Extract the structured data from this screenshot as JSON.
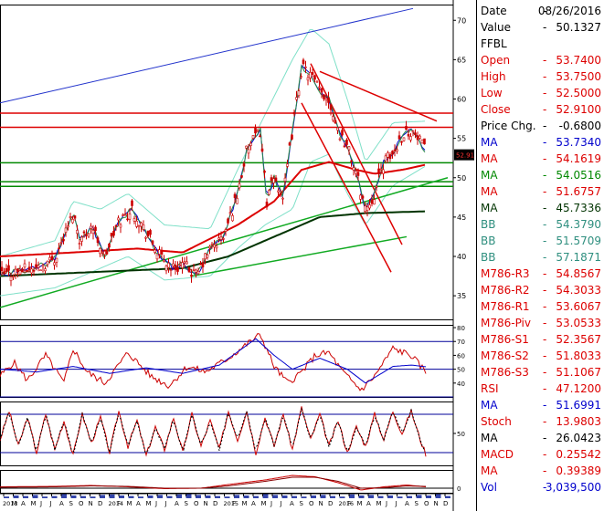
{
  "chart_data": {
    "type": "line",
    "symbol": "FFBL",
    "price_tag": "52.91",
    "x_tick_labels": [
      "2013",
      "M",
      "A",
      "M",
      "J",
      "J",
      "A",
      "S",
      "O",
      "N",
      "D",
      "2014",
      "F",
      "M",
      "A",
      "M",
      "J",
      "J",
      "A",
      "S",
      "O",
      "N",
      "D",
      "2015",
      "F",
      "M",
      "A",
      "M",
      "J",
      "J",
      "A",
      "S",
      "O",
      "N",
      "D",
      "2016",
      "F",
      "M",
      "A",
      "M",
      "J",
      "J",
      "A",
      "S",
      "O",
      "N",
      "D"
    ],
    "price_panel": {
      "ylim": [
        32,
        72
      ],
      "y_ticks": [
        35,
        40,
        45,
        50,
        55,
        60,
        65,
        70
      ],
      "close_knots": [
        [
          0,
          37.5
        ],
        [
          20,
          38.2
        ],
        [
          40,
          38.5
        ],
        [
          60,
          39.8
        ],
        [
          70,
          42.5
        ],
        [
          80,
          45.5
        ],
        [
          88,
          42
        ],
        [
          100,
          44
        ],
        [
          115,
          40
        ],
        [
          130,
          44.5
        ],
        [
          145,
          46
        ],
        [
          160,
          43
        ],
        [
          175,
          40
        ],
        [
          190,
          38.5
        ],
        [
          200,
          39
        ],
        [
          215,
          37.5
        ],
        [
          230,
          41
        ],
        [
          245,
          42.5
        ],
        [
          260,
          48
        ],
        [
          270,
          53.5
        ],
        [
          285,
          56
        ],
        [
          292,
          47
        ],
        [
          300,
          50
        ],
        [
          310,
          47.5
        ],
        [
          320,
          56
        ],
        [
          330,
          64
        ],
        [
          340,
          63
        ],
        [
          350,
          61
        ],
        [
          360,
          60
        ],
        [
          370,
          56
        ],
        [
          380,
          54
        ],
        [
          390,
          50.5
        ],
        [
          400,
          46
        ],
        [
          410,
          48
        ],
        [
          420,
          52
        ],
        [
          430,
          53
        ],
        [
          440,
          55.5
        ],
        [
          450,
          56
        ],
        [
          460,
          54.5
        ],
        [
          467,
          52.91
        ]
      ],
      "ma_slow": [
        [
          0,
          40
        ],
        [
          80,
          40.5
        ],
        [
          150,
          41
        ],
        [
          200,
          40.5
        ],
        [
          260,
          44
        ],
        [
          300,
          47
        ],
        [
          330,
          51
        ],
        [
          360,
          52
        ],
        [
          390,
          51
        ],
        [
          410,
          50.5
        ],
        [
          440,
          51
        ],
        [
          467,
          51.68
        ]
      ],
      "ma_long": [
        [
          0,
          37.5
        ],
        [
          100,
          38
        ],
        [
          200,
          38.5
        ],
        [
          250,
          40
        ],
        [
          300,
          42.5
        ],
        [
          350,
          45
        ],
        [
          400,
          45.5
        ],
        [
          467,
          45.73
        ]
      ],
      "bb_upper": [
        [
          0,
          40
        ],
        [
          60,
          42
        ],
        [
          80,
          47
        ],
        [
          110,
          46
        ],
        [
          140,
          48
        ],
        [
          180,
          44
        ],
        [
          230,
          43.5
        ],
        [
          260,
          51
        ],
        [
          290,
          58
        ],
        [
          320,
          65
        ],
        [
          340,
          69
        ],
        [
          360,
          67
        ],
        [
          380,
          60
        ],
        [
          400,
          52
        ],
        [
          430,
          57
        ],
        [
          467,
          57.19
        ]
      ],
      "bb_lower": [
        [
          0,
          35
        ],
        [
          60,
          36
        ],
        [
          100,
          38
        ],
        [
          140,
          40
        ],
        [
          180,
          37
        ],
        [
          230,
          37.5
        ],
        [
          260,
          41
        ],
        [
          290,
          44
        ],
        [
          320,
          46
        ],
        [
          340,
          52
        ],
        [
          360,
          53
        ],
        [
          380,
          48
        ],
        [
          400,
          44
        ],
        [
          430,
          49
        ],
        [
          467,
          51.57
        ]
      ],
      "levels": [
        58.2,
        56.4,
        51.9,
        49.5,
        48.9
      ],
      "channel_upper": [
        [
          0,
          59.5
        ],
        [
          452,
          71.5
        ]
      ],
      "channel_lower": [
        [
          0,
          33.5
        ],
        [
          490,
          50
        ]
      ],
      "support_line": [
        [
          210,
          37.5
        ],
        [
          445,
          42.5
        ]
      ],
      "down_trend_1": [
        [
          350,
          63.5
        ],
        [
          478,
          57.2
        ]
      ],
      "down_trend_2": [
        [
          340,
          64.5
        ],
        [
          440,
          41.5
        ]
      ],
      "down_trend_3": [
        [
          330,
          59.5
        ],
        [
          428,
          38
        ]
      ]
    },
    "rsi_panel": {
      "ylim": [
        30,
        82
      ],
      "y_ticks": [
        40,
        50,
        60,
        70,
        80
      ],
      "hlines": [
        70,
        50,
        30
      ],
      "rsi_knots": [
        [
          0,
          45
        ],
        [
          15,
          55
        ],
        [
          30,
          42
        ],
        [
          50,
          60
        ],
        [
          70,
          40
        ],
        [
          80,
          65
        ],
        [
          95,
          48
        ],
        [
          115,
          40
        ],
        [
          140,
          62
        ],
        [
          165,
          45
        ],
        [
          185,
          38
        ],
        [
          205,
          52
        ],
        [
          225,
          48
        ],
        [
          250,
          58
        ],
        [
          270,
          68
        ],
        [
          285,
          75
        ],
        [
          300,
          52
        ],
        [
          315,
          40
        ],
        [
          330,
          48
        ],
        [
          345,
          60
        ],
        [
          360,
          62
        ],
        [
          375,
          48
        ],
        [
          395,
          35
        ],
        [
          410,
          45
        ],
        [
          430,
          65
        ],
        [
          450,
          60
        ],
        [
          467,
          47.12
        ]
      ],
      "ma_knots": [
        [
          0,
          50
        ],
        [
          40,
          48
        ],
        [
          80,
          52
        ],
        [
          120,
          47
        ],
        [
          160,
          51
        ],
        [
          200,
          47
        ],
        [
          240,
          53
        ],
        [
          280,
          72
        ],
        [
          300,
          60
        ],
        [
          320,
          50
        ],
        [
          350,
          58
        ],
        [
          380,
          50
        ],
        [
          400,
          40
        ],
        [
          430,
          52
        ],
        [
          450,
          53
        ],
        [
          467,
          51.7
        ]
      ]
    },
    "stoch_panel": {
      "ylim": [
        0,
        100
      ],
      "y_ticks": [
        50
      ],
      "hlines": [
        80,
        20
      ],
      "stoch_knots": [
        [
          0,
          40
        ],
        [
          10,
          85
        ],
        [
          20,
          30
        ],
        [
          30,
          75
        ],
        [
          40,
          20
        ],
        [
          50,
          80
        ],
        [
          60,
          25
        ],
        [
          70,
          70
        ],
        [
          80,
          15
        ],
        [
          90,
          80
        ],
        [
          100,
          35
        ],
        [
          110,
          75
        ],
        [
          120,
          20
        ],
        [
          130,
          85
        ],
        [
          140,
          30
        ],
        [
          150,
          70
        ],
        [
          160,
          15
        ],
        [
          170,
          60
        ],
        [
          180,
          25
        ],
        [
          190,
          75
        ],
        [
          200,
          20
        ],
        [
          210,
          80
        ],
        [
          220,
          30
        ],
        [
          230,
          70
        ],
        [
          240,
          25
        ],
        [
          250,
          85
        ],
        [
          260,
          40
        ],
        [
          270,
          85
        ],
        [
          280,
          20
        ],
        [
          290,
          75
        ],
        [
          300,
          30
        ],
        [
          310,
          80
        ],
        [
          320,
          25
        ],
        [
          330,
          90
        ],
        [
          340,
          40
        ],
        [
          350,
          80
        ],
        [
          360,
          30
        ],
        [
          370,
          70
        ],
        [
          380,
          20
        ],
        [
          390,
          60
        ],
        [
          400,
          30
        ],
        [
          410,
          80
        ],
        [
          420,
          40
        ],
        [
          430,
          85
        ],
        [
          440,
          50
        ],
        [
          450,
          85
        ],
        [
          460,
          40
        ],
        [
          467,
          13.98
        ]
      ],
      "ma_knots": [
        [
          0,
          45
        ],
        [
          20,
          50
        ],
        [
          40,
          40
        ],
        [
          60,
          55
        ],
        [
          80,
          40
        ],
        [
          100,
          50
        ],
        [
          120,
          45
        ],
        [
          140,
          55
        ],
        [
          160,
          40
        ],
        [
          180,
          45
        ],
        [
          200,
          45
        ],
        [
          220,
          55
        ],
        [
          240,
          45
        ],
        [
          260,
          60
        ],
        [
          280,
          50
        ],
        [
          300,
          55
        ],
        [
          320,
          50
        ],
        [
          340,
          60
        ],
        [
          360,
          50
        ],
        [
          380,
          40
        ],
        [
          400,
          45
        ],
        [
          420,
          55
        ],
        [
          440,
          60
        ],
        [
          460,
          55
        ],
        [
          467,
          26.04
        ]
      ]
    },
    "macd_panel": {
      "ylim": [
        -1,
        4
      ],
      "y_ticks": [
        0
      ],
      "macd_knots": [
        [
          0,
          0.3
        ],
        [
          60,
          0.4
        ],
        [
          100,
          0.6
        ],
        [
          140,
          0.3
        ],
        [
          180,
          -0.1
        ],
        [
          220,
          0
        ],
        [
          250,
          0.8
        ],
        [
          290,
          1.8
        ],
        [
          320,
          2.8
        ],
        [
          345,
          2.5
        ],
        [
          370,
          1.2
        ],
        [
          395,
          -0.4
        ],
        [
          420,
          0.3
        ],
        [
          445,
          0.7
        ],
        [
          467,
          0.26
        ]
      ],
      "signal_knots": [
        [
          0,
          0.2
        ],
        [
          60,
          0.3
        ],
        [
          100,
          0.5
        ],
        [
          140,
          0.4
        ],
        [
          180,
          0
        ],
        [
          220,
          0
        ],
        [
          250,
          0.5
        ],
        [
          290,
          1.5
        ],
        [
          320,
          2.4
        ],
        [
          345,
          2.4
        ],
        [
          370,
          1.5
        ],
        [
          395,
          0
        ],
        [
          420,
          0.1
        ],
        [
          445,
          0.5
        ],
        [
          467,
          0.39
        ]
      ]
    },
    "volume_bars": [
      0.3,
      0.5,
      0.4,
      0.6,
      0.3,
      0.4,
      0.8,
      0.5,
      0.4,
      0.3,
      0.6,
      0.7,
      0.5,
      0.4,
      0.3,
      0.5,
      0.6,
      0.4,
      0.7,
      0.9,
      0.6,
      0.5,
      0.4,
      0.3,
      0.6,
      0.5,
      0.4,
      0.8,
      0.6,
      0.5,
      0.4,
      0.3,
      0.5,
      0.6,
      0.4,
      0.3,
      0.7,
      0.5,
      0.6,
      0.4,
      0.5,
      0.3,
      0.4,
      0.6,
      0.5,
      0.8,
      0.4
    ],
    "colors": {
      "price": "#cc0000",
      "ma_fast_blue": "#0000cc",
      "ma_slow_red": "#dd0000",
      "ma_long": "#003300",
      "bb": "#7fe0c8",
      "levels_red": "#dd0000",
      "levels_green": "#008800",
      "channel_blue": "#2233cc",
      "trend_green": "#11aa22",
      "rsi_line": "#cc0000",
      "rsi_ma": "#0000cc",
      "hline_blue": "#000099"
    }
  },
  "info_panel": {
    "rows": [
      {
        "label": "Date",
        "value": "08/26/2016",
        "color": "#000000"
      },
      {
        "label": "Value",
        "value": "50.1327",
        "color": "#000000"
      },
      {
        "label": "FFBL",
        "value": "",
        "color": "#000000"
      },
      {
        "label": "Open",
        "value": "53.7400",
        "color": "#dd0000"
      },
      {
        "label": "High",
        "value": "53.7500",
        "color": "#dd0000"
      },
      {
        "label": "Low",
        "value": "52.5000",
        "color": "#dd0000"
      },
      {
        "label": "Close",
        "value": "52.9100",
        "color": "#dd0000"
      },
      {
        "label": "Price Chg.",
        "value": "-0.6800",
        "color": "#000000"
      },
      {
        "label": "MA",
        "value": "53.7340",
        "color": "#0000cc"
      },
      {
        "label": "MA",
        "value": "54.1619",
        "color": "#dd0000"
      },
      {
        "label": "MA",
        "value": "54.0516",
        "color": "#008800"
      },
      {
        "label": "MA",
        "value": "51.6757",
        "color": "#dd0000"
      },
      {
        "label": "MA",
        "value": "45.7336",
        "color": "#003300"
      },
      {
        "label": "BB",
        "value": "54.3790",
        "color": "#2f8f7f"
      },
      {
        "label": "BB",
        "value": "51.5709",
        "color": "#2f8f7f"
      },
      {
        "label": "BB",
        "value": "57.1871",
        "color": "#2f8f7f"
      },
      {
        "label": "M786-R3",
        "value": "54.8567",
        "color": "#dd0000"
      },
      {
        "label": "M786-R2",
        "value": "54.3033",
        "color": "#dd0000"
      },
      {
        "label": "M786-R1",
        "value": "53.6067",
        "color": "#dd0000"
      },
      {
        "label": "M786-Piv",
        "value": "53.0533",
        "color": "#dd0000"
      },
      {
        "label": "M786-S1",
        "value": "52.3567",
        "color": "#dd0000"
      },
      {
        "label": "M786-S2",
        "value": "51.8033",
        "color": "#dd0000"
      },
      {
        "label": "M786-S3",
        "value": "51.1067",
        "color": "#dd0000"
      },
      {
        "label": "RSI",
        "value": "47.1200",
        "color": "#dd0000"
      },
      {
        "label": "MA",
        "value": "51.6991",
        "color": "#0000cc"
      },
      {
        "label": "Stoch",
        "value": "13.9803",
        "color": "#dd0000"
      },
      {
        "label": "MA",
        "value": "26.0423",
        "color": "#000000"
      },
      {
        "label": "MACD",
        "value": "0.25542",
        "color": "#dd0000"
      },
      {
        "label": "MA",
        "value": "0.39389",
        "color": "#dd0000"
      },
      {
        "label": "Vol",
        "value": "3,039,500",
        "color": "#0000cc"
      }
    ]
  }
}
